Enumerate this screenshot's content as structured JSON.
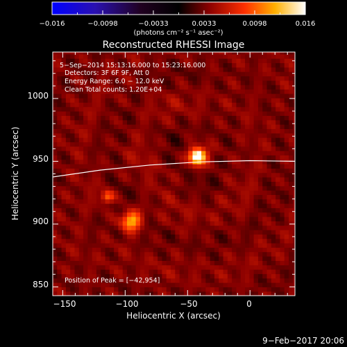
{
  "colorbar": {
    "ticks": [
      "−0.016",
      "−0.0098",
      "−0.0033",
      "0.0033",
      "0.0098",
      "0.016"
    ],
    "unit_label": "(photons cm⁻² s⁻¹ asec⁻²)"
  },
  "plot": {
    "info": {
      "line1": "5−Sep−2014 15:13:16.000 to 15:23:16.000",
      "line2": "Detectors: 3F 6F 9F, Att 0",
      "line3": "Energy Range: 6.0 − 12.0 keV",
      "line4": "Clean    Total counts: 1.20E+04"
    },
    "peak_label": "Position of Peak = [−42,954]"
  },
  "footer": {
    "date": "9−Feb−2017 20:06"
  },
  "chart_data": {
    "type": "heatmap",
    "title": "Reconstructed RHESSI Image",
    "xlabel": "Heliocentric X (arcsec)",
    "ylabel": "Heliocentric Y (arcsec)",
    "xlim": [
      -158,
      36
    ],
    "ylim": [
      843,
      1037
    ],
    "x_ticks": [
      -150,
      -100,
      -50,
      0
    ],
    "x_tick_labels": [
      "−150",
      "−100",
      "−50",
      "0"
    ],
    "y_ticks": [
      850,
      900,
      950,
      1000
    ],
    "y_tick_labels": [
      "850",
      "900",
      "950",
      "1000"
    ],
    "color_range": [
      -0.016,
      0.016
    ],
    "colormap": "rainbow-blue-to-white",
    "sources": [
      {
        "x": -42,
        "y": 954,
        "sigma": 4.5,
        "amp": 1.0
      },
      {
        "x": -95,
        "y": 903,
        "sigma": 5.5,
        "amp": 0.62
      },
      {
        "x": -114,
        "y": 922,
        "sigma": 3.5,
        "amp": 0.45
      }
    ],
    "peak": {
      "x": -42,
      "y": 954
    },
    "limb_curve": [
      {
        "x": -158,
        "y": 937.5
      },
      {
        "x": -120,
        "y": 943
      },
      {
        "x": -80,
        "y": 947
      },
      {
        "x": -40,
        "y": 949.5
      },
      {
        "x": 0,
        "y": 950.5
      },
      {
        "x": 36,
        "y": 950
      }
    ]
  }
}
